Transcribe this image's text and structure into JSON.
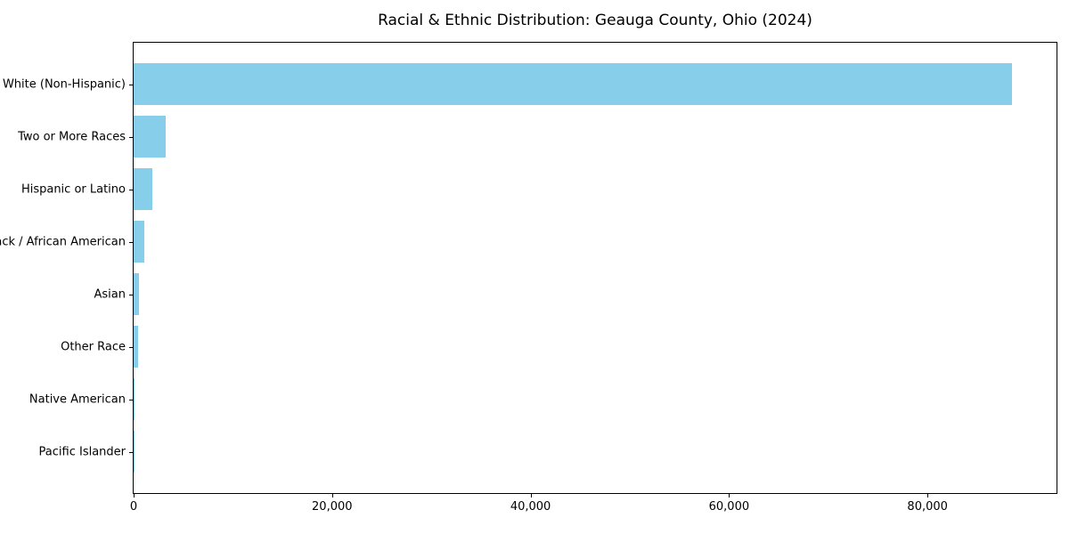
{
  "chart_data": {
    "type": "bar",
    "orientation": "horizontal",
    "title": "Racial & Ethnic Distribution: Geauga County, Ohio (2024)",
    "xlabel": "",
    "ylabel": "",
    "categories": [
      "White (Non-Hispanic)",
      "Two or More Races",
      "Hispanic or Latino",
      "Black / African American",
      "Asian",
      "Other Race",
      "Native American",
      "Pacific Islander"
    ],
    "values": [
      88500,
      3200,
      1900,
      1050,
      540,
      420,
      70,
      25
    ],
    "xlim": [
      0,
      93000
    ],
    "xticks": [
      {
        "value": 0,
        "label": "0"
      },
      {
        "value": 20000,
        "label": "20,000"
      },
      {
        "value": 40000,
        "label": "40,000"
      },
      {
        "value": 60000,
        "label": "60,000"
      },
      {
        "value": 80000,
        "label": "80,000"
      }
    ],
    "bar_color": "#87CEEB",
    "grid": false,
    "legend": false
  }
}
